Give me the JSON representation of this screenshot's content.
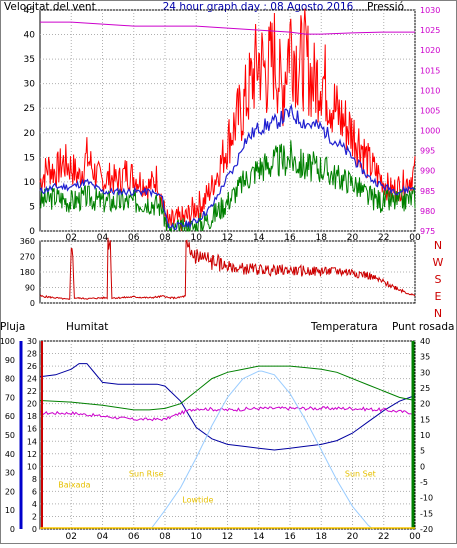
{
  "header": {
    "left_label": "Velocitat del vent",
    "title": "24 hour graph day : 08 Agosto 2016",
    "right_label": "Pressió"
  },
  "colors": {
    "wind_avg": "#2020d0",
    "wind_gust": "#ff0000",
    "wind_low": "#008000",
    "pressure": "#cc00cc",
    "direction": "#cc0000",
    "humidity": "#0000a0",
    "temperature": "#008000",
    "dewpoint": "#cc00cc",
    "sun": "#99ccff",
    "annotations": "#e6c000",
    "rain_axis": "#cc0000",
    "hum_axis": "#0000cc",
    "temp_axis": "#008000"
  },
  "time_ticks": [
    "02",
    "04",
    "06",
    "08",
    "10",
    "12",
    "14",
    "16",
    "18",
    "20",
    "22",
    "00"
  ],
  "chart_data": [
    {
      "id": "wind",
      "type": "line",
      "x_unit": "hours",
      "ylabel_left": "Velocitat del vent",
      "ylabel_right": "Pressió",
      "ylim": [
        0,
        45
      ],
      "yticks": [
        "0",
        "5",
        "10",
        "15",
        "20",
        "25",
        "30",
        "35",
        "40",
        "45"
      ],
      "y2lim": [
        975,
        1030
      ],
      "y2ticks": [
        "975",
        "980",
        "985",
        "990",
        "995",
        "1000",
        "1005",
        "1010",
        "1015",
        "1020",
        "1025",
        "1030"
      ],
      "series": [
        {
          "role": "gust",
          "x": [
            0,
            0.5,
            1,
            1.5,
            2,
            2.5,
            3,
            3.5,
            4,
            4.5,
            5,
            5.5,
            6,
            6.5,
            7,
            7.5,
            8,
            8.3,
            8.6,
            9,
            9.5,
            10,
            10.5,
            11,
            11.5,
            12,
            12.5,
            13,
            13.5,
            14,
            14.5,
            15,
            15.5,
            16,
            16.5,
            17,
            17.5,
            18,
            18.5,
            19,
            19.5,
            20,
            20.5,
            21,
            21.5,
            22,
            22.5,
            23,
            23.5,
            24
          ],
          "values": [
            10,
            13,
            12,
            14,
            13,
            11,
            15,
            12,
            10,
            11,
            10,
            12,
            11,
            10,
            9,
            11,
            3,
            1,
            2,
            2,
            3,
            5,
            6,
            9,
            13,
            18,
            22,
            25,
            30,
            35,
            32,
            36,
            28,
            40,
            34,
            35,
            30,
            32,
            28,
            24,
            22,
            20,
            18,
            14,
            12,
            10,
            8,
            9,
            10,
            12
          ]
        },
        {
          "role": "average",
          "x": [
            0,
            1,
            2,
            3,
            4,
            5,
            6,
            7,
            7.8,
            8.2,
            9,
            10,
            11,
            12,
            12.5,
            13,
            14,
            15,
            16,
            17,
            18,
            19,
            20,
            21,
            22,
            23,
            24
          ],
          "values": [
            8,
            9,
            9,
            10,
            8,
            8,
            8,
            8,
            7,
            1,
            1,
            2,
            5,
            11,
            13,
            18,
            21,
            22,
            24,
            22,
            21,
            18,
            15,
            11,
            9,
            8,
            9
          ]
        },
        {
          "role": "low",
          "x": [
            0,
            1,
            2,
            3,
            4,
            5,
            6,
            7,
            7.8,
            8.2,
            9,
            10,
            11,
            12,
            12.5,
            13,
            14,
            15,
            16,
            17,
            18,
            19,
            20,
            21,
            22,
            23,
            24
          ],
          "values": [
            6,
            7,
            6,
            7,
            6,
            6,
            6,
            6,
            5,
            0,
            0,
            1,
            3,
            6,
            8,
            10,
            13,
            14,
            15,
            13,
            13,
            11,
            10,
            7,
            6,
            6,
            7
          ]
        },
        {
          "role": "pressure",
          "axis": "right",
          "x": [
            0,
            2,
            4,
            6,
            8,
            10,
            12,
            14,
            16,
            17,
            18,
            20,
            22,
            24
          ],
          "values": [
            1027,
            1027,
            1026.5,
            1026,
            1026,
            1026,
            1025.5,
            1025,
            1024.5,
            1024,
            1024,
            1024.3,
            1024.5,
            1024.5
          ]
        }
      ]
    },
    {
      "id": "direction",
      "type": "line",
      "x_unit": "hours",
      "ylim": [
        0,
        360
      ],
      "yticks": [
        "0",
        "90",
        "180",
        "270",
        "360"
      ],
      "compass": [
        "N",
        "W",
        "S",
        "E",
        "N"
      ],
      "series": [
        {
          "role": "direction",
          "x": [
            0,
            1,
            1.9,
            2.0,
            2.05,
            2.2,
            3,
            4,
            4.3,
            4.35,
            4.5,
            4.6,
            5,
            6,
            7,
            8,
            8.2,
            8.8,
            9.3,
            9.35,
            9.6,
            10,
            10.5,
            11,
            11.5,
            12,
            12.5,
            13,
            14,
            15,
            16,
            17,
            18,
            19,
            20,
            20.5,
            21,
            21.5,
            22,
            22.5,
            23,
            23.5,
            24
          ],
          "values": [
            40,
            30,
            20,
            355,
            355,
            30,
            25,
            30,
            30,
            355,
            355,
            30,
            30,
            35,
            30,
            40,
            30,
            30,
            40,
            330,
            290,
            270,
            260,
            240,
            230,
            210,
            200,
            200,
            195,
            190,
            190,
            185,
            185,
            185,
            180,
            170,
            160,
            140,
            120,
            100,
            80,
            60,
            40
          ]
        }
      ]
    },
    {
      "id": "weather",
      "type": "line",
      "x_unit": "hours",
      "legend": [
        "Pluja",
        "Humitat",
        "Temperatura",
        "Punt rosada"
      ],
      "rain_ticks": [
        "0",
        "2",
        "4",
        "6",
        "8",
        "10",
        "12",
        "14",
        "16",
        "18",
        "20",
        "22",
        "24",
        "26",
        "28",
        "30"
      ],
      "hum_ticks": [
        "0",
        "10",
        "20",
        "30",
        "40",
        "50",
        "60",
        "70",
        "80",
        "90",
        "100"
      ],
      "temp_ticks": [
        "-20",
        "-15",
        "-10",
        "-5",
        "0",
        "5",
        "10",
        "15",
        "20",
        "25",
        "30",
        "35",
        "40"
      ],
      "temp_ylim": [
        -20,
        40
      ],
      "hum_ylim": [
        0,
        100
      ],
      "series": [
        {
          "role": "humidity",
          "axis": "humidity",
          "x": [
            0,
            1,
            2,
            2.5,
            3,
            3.5,
            4,
            5,
            6,
            7,
            7.5,
            8,
            9,
            10,
            11,
            12,
            13,
            14,
            15,
            16,
            17,
            18,
            19,
            20,
            21,
            22,
            23,
            24
          ],
          "values": [
            81,
            82,
            85,
            88,
            88,
            83,
            78,
            77,
            77,
            77,
            77,
            76,
            68,
            54,
            48,
            45,
            44,
            43,
            42,
            43,
            44,
            45,
            47,
            51,
            57,
            63,
            68,
            71
          ]
        },
        {
          "role": "temperature",
          "axis": "temperature",
          "x": [
            0,
            2,
            4,
            6,
            7,
            8,
            9,
            10,
            11,
            12,
            13,
            14,
            15,
            16,
            17,
            18,
            19,
            20,
            21,
            22,
            23,
            24
          ],
          "values": [
            21,
            20.5,
            19.5,
            18,
            18,
            18.5,
            20,
            24,
            28,
            30,
            31,
            32,
            32,
            32,
            31.5,
            31,
            30,
            28,
            26,
            24,
            22,
            21
          ]
        },
        {
          "role": "dewpoint",
          "axis": "temperature",
          "x": [
            0,
            2,
            4,
            6,
            8,
            9,
            10,
            12,
            14,
            16,
            18,
            20,
            22,
            24
          ],
          "values": [
            17,
            17,
            16,
            15,
            15,
            17,
            18.5,
            18,
            18.5,
            18.5,
            18.5,
            18.5,
            18,
            17
          ]
        },
        {
          "role": "sun",
          "axis": "hum",
          "x": [
            7.1,
            8,
            9,
            10,
            11,
            12,
            13,
            14,
            14.2,
            15,
            16,
            17,
            18,
            19,
            20,
            21,
            21.3
          ],
          "values": [
            0,
            10,
            22,
            38,
            55,
            70,
            80,
            84,
            84,
            82,
            72,
            58,
            42,
            26,
            12,
            2,
            0
          ]
        }
      ],
      "annotations": [
        {
          "label": "Baixada",
          "hour": 2.2,
          "level": 0.22
        },
        {
          "label": "Sun Rise",
          "hour": 6.8,
          "level": 0.28
        },
        {
          "label": "Lowtide",
          "hour": 10.1,
          "level": 0.14
        },
        {
          "label": "Sun Set",
          "hour": 20.5,
          "level": 0.28
        }
      ]
    }
  ]
}
